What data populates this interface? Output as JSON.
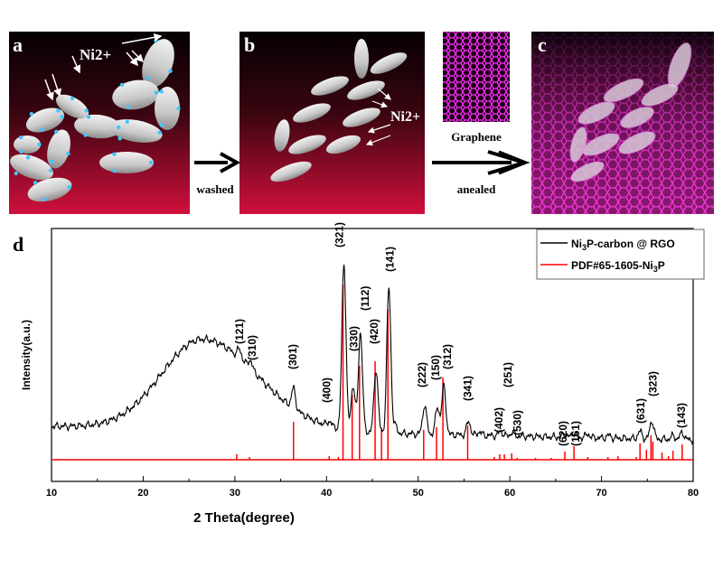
{
  "panels": {
    "a": {
      "letter": "a",
      "ion_label": "Ni2+"
    },
    "b": {
      "letter": "b",
      "ion_label": "Ni2+"
    },
    "graphene": {
      "label": "Graphene"
    },
    "c": {
      "letter": "c"
    },
    "d": {
      "letter": "d"
    },
    "arrow1_label": "washed",
    "arrow2_label": "anealed"
  },
  "colors": {
    "sample": "#000000",
    "reference": "#ff0000",
    "panel_dark": "#0a0003",
    "panel_red": "#c8103a",
    "graphene": "#e020e0"
  },
  "chart_data": {
    "type": "line",
    "xlabel": "2 Theta(degree)",
    "ylabel": "Intensity(a.u.)",
    "xlim": [
      10,
      80
    ],
    "ylim": [
      -24,
      256
    ],
    "x_ticks": [
      10,
      20,
      30,
      40,
      50,
      60,
      70,
      80
    ],
    "grid": false,
    "legend_position": "top-right",
    "series": [
      {
        "name": "Ni3P-carbon @ RGO",
        "legend_main": "Ni",
        "legend_sub": "3",
        "legend_rest": "P-carbon @ RGO",
        "color": "#000000",
        "background": {
          "start": 37,
          "end": 22,
          "hump_center": 26.5,
          "hump_height": 100,
          "hump_sigma_left": 4.5,
          "hump_sigma_right": 6
        },
        "peaks": [
          [
            30.5,
            10
          ],
          [
            31.7,
            9
          ],
          [
            36.4,
            22
          ],
          [
            40.3,
            5
          ],
          [
            41.9,
            184
          ],
          [
            42.9,
            50
          ],
          [
            43.7,
            110
          ],
          [
            45.4,
            70
          ],
          [
            46.8,
            160
          ],
          [
            47.5,
            8
          ],
          [
            50.7,
            32
          ],
          [
            52.1,
            30
          ],
          [
            52.8,
            54
          ],
          [
            55.5,
            15
          ],
          [
            56.7,
            4
          ],
          [
            59.0,
            5
          ],
          [
            60.3,
            4
          ],
          [
            66.0,
            3
          ],
          [
            67.0,
            5
          ],
          [
            68.5,
            4
          ],
          [
            70.8,
            3
          ],
          [
            74.2,
            8
          ],
          [
            75.5,
            20
          ],
          [
            77.8,
            4
          ],
          [
            78.8,
            8
          ]
        ]
      },
      {
        "name": "PDF#65-1605-Ni3P",
        "legend_main": "PDF#65-1605-Ni",
        "legend_sub": "3",
        "legend_rest": "P",
        "color": "#ff0000",
        "type": "stick",
        "x": [
          30.2,
          31.6,
          36.4,
          40.3,
          41.3,
          41.8,
          42.8,
          43.6,
          45.3,
          46.0,
          46.7,
          50.6,
          52.0,
          52.7,
          55.4,
          58.3,
          58.9,
          59.4,
          60.2,
          60.8,
          62.8,
          64.5,
          66.0,
          67.0,
          68.5,
          70.7,
          71.8,
          73.8,
          74.2,
          74.9,
          75.4,
          75.6,
          76.6,
          77.3,
          77.8,
          78.8
        ],
        "values": [
          6,
          3,
          42,
          4,
          3,
          194,
          72,
          104,
          109,
          35,
          167,
          33,
          36,
          91,
          38,
          3,
          6,
          6,
          7,
          2,
          2,
          2,
          9,
          15,
          3,
          3,
          4,
          3,
          18,
          11,
          27,
          20,
          8,
          4,
          10,
          17
        ]
      }
    ],
    "annotations": [
      {
        "text": "(121)",
        "x": 30.5,
        "y": 128
      },
      {
        "text": "(310)",
        "x": 31.9,
        "y": 110
      },
      {
        "text": "(301)",
        "x": 36.3,
        "y": 100
      },
      {
        "text": "(400)",
        "x": 40.0,
        "y": 63
      },
      {
        "text": "(321)",
        "x": 41.4,
        "y": 235
      },
      {
        "text": "(330)",
        "x": 43.0,
        "y": 120
      },
      {
        "text": "(112)",
        "x": 44.2,
        "y": 165
      },
      {
        "text": "(420)",
        "x": 45.2,
        "y": 128
      },
      {
        "text": "(141)",
        "x": 46.9,
        "y": 208
      },
      {
        "text": "(222)",
        "x": 50.4,
        "y": 80
      },
      {
        "text": "(150)",
        "x": 51.9,
        "y": 88
      },
      {
        "text": "(312)",
        "x": 53.2,
        "y": 100
      },
      {
        "text": "(341)",
        "x": 55.4,
        "y": 65
      },
      {
        "text": "(402)",
        "x": 58.8,
        "y": 30
      },
      {
        "text": "(251)",
        "x": 59.8,
        "y": 80
      },
      {
        "text": "(530)",
        "x": 60.8,
        "y": 27
      },
      {
        "text": "(620)",
        "x": 65.8,
        "y": 15
      },
      {
        "text": "(161)",
        "x": 67.2,
        "y": 15
      },
      {
        "text": "(631)",
        "x": 74.3,
        "y": 40
      },
      {
        "text": "(323)",
        "x": 75.6,
        "y": 70
      },
      {
        "text": "(143)",
        "x": 78.7,
        "y": 35
      }
    ]
  }
}
